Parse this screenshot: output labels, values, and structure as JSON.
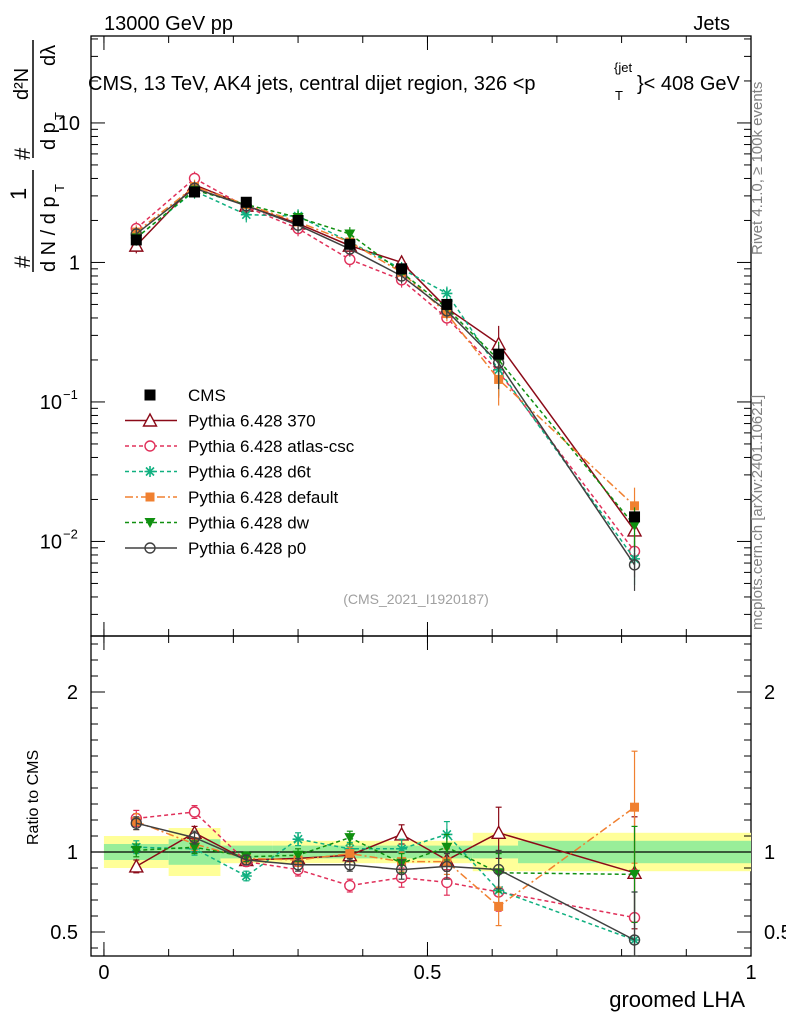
{
  "header": {
    "energy": "13000 GeV pp",
    "category": "Jets",
    "title": "CMS, 13 TeV, AK4 jets, central dijet region, 326 <p",
    "title_sup": "{jet",
    "title_sub": "T",
    "title_end": "}< 408 GeV"
  },
  "side_labels": {
    "rivet": "Rivet 4.1.0, ≥ 100k events",
    "mcplots": "mcplots.cern.ch [arXiv:2401.10621]"
  },
  "watermark": "(CMS_2021_I1920187)",
  "ylabel_main": "1/N dN/dpT d^2N/dpT dλ",
  "ylabel_ratio": "Ratio to CMS",
  "xlabel": "groomed LHA",
  "chart_data": {
    "type": "line",
    "x": [
      0.05,
      0.14,
      0.22,
      0.3,
      0.38,
      0.46,
      0.53,
      0.61,
      0.82
    ],
    "x_ticks": [
      "0",
      "0.5",
      "1"
    ],
    "xlim": [
      -0.02,
      1.0
    ],
    "main": {
      "yscale": "log",
      "ylim": [
        0.0021,
        42
      ],
      "y_ticks": [
        {
          "value": 0.01,
          "label": "10",
          "sup": "−2"
        },
        {
          "value": 0.1,
          "label": "10",
          "sup": "−1"
        },
        {
          "value": 1,
          "label": "1",
          "sup": ""
        },
        {
          "value": 10,
          "label": "10",
          "sup": ""
        }
      ]
    },
    "ratio": {
      "yscale": "linear",
      "ylim": [
        0.35,
        2.35
      ],
      "y_ticks": [
        "0.5",
        "1",
        "2"
      ],
      "band_edges": [
        0.0,
        0.1,
        0.18,
        0.26,
        0.34,
        0.42,
        0.5,
        0.57,
        0.64,
        1.0
      ],
      "band_inner": [
        [
          0.95,
          1.05
        ],
        [
          0.92,
          1.08
        ],
        [
          0.96,
          1.04
        ],
        [
          0.96,
          1.04
        ],
        [
          0.96,
          1.04
        ],
        [
          0.96,
          1.04
        ],
        [
          0.96,
          1.04
        ],
        [
          0.96,
          1.04
        ],
        [
          0.93,
          1.07
        ]
      ],
      "band_outer": [
        [
          0.9,
          1.1
        ],
        [
          0.85,
          1.15
        ],
        [
          0.93,
          1.07
        ],
        [
          0.93,
          1.07
        ],
        [
          0.93,
          1.07
        ],
        [
          0.93,
          1.07
        ],
        [
          0.93,
          1.07
        ],
        [
          0.88,
          1.12
        ],
        [
          0.88,
          1.12
        ]
      ]
    },
    "data": {
      "name": "CMS",
      "values": [
        1.45,
        3.2,
        2.7,
        2.0,
        1.35,
        0.9,
        0.5,
        0.22,
        0.015
      ]
    },
    "series": [
      {
        "name": "Pythia 6.428 370",
        "color": "#8b0a18",
        "marker": "triangle-open",
        "dash": "solid",
        "values": [
          1.32,
          3.6,
          2.55,
          1.9,
          1.32,
          1.0,
          0.47,
          0.26,
          0.012
        ],
        "ratio": [
          0.91,
          1.12,
          0.95,
          0.96,
          0.98,
          1.11,
          0.95,
          1.12,
          0.87
        ],
        "ratio_err": [
          0.04,
          0.04,
          0.03,
          0.04,
          0.04,
          0.06,
          0.07,
          0.16,
          0.35
        ]
      },
      {
        "name": "Pythia 6.428 atlas-csc",
        "color": "#e0305a",
        "marker": "circle-open",
        "dash": "4,3",
        "values": [
          1.75,
          4.0,
          2.5,
          1.75,
          1.05,
          0.75,
          0.4,
          0.165,
          0.0085
        ],
        "ratio": [
          1.21,
          1.25,
          0.94,
          0.89,
          0.79,
          0.84,
          0.81,
          0.75,
          0.59
        ],
        "ratio_err": [
          0.05,
          0.04,
          0.03,
          0.04,
          0.04,
          0.06,
          0.08,
          0.12,
          0.3
        ]
      },
      {
        "name": "Pythia 6.428 d6t",
        "color": "#10b080",
        "marker": "star",
        "dash": "4,3",
        "values": [
          1.5,
          3.25,
          2.2,
          2.15,
          1.4,
          0.9,
          0.6,
          0.17,
          0.0075
        ],
        "ratio": [
          1.03,
          1.02,
          0.85,
          1.08,
          1.02,
          1.02,
          1.11,
          0.76,
          0.45
        ],
        "ratio_err": [
          0.04,
          0.04,
          0.03,
          0.04,
          0.04,
          0.06,
          0.08,
          0.12,
          0.3
        ]
      },
      {
        "name": "Pythia 6.428 default",
        "color": "#f08030",
        "marker": "square",
        "dash": "8,3,2,3",
        "values": [
          1.65,
          3.5,
          2.6,
          1.95,
          1.4,
          0.85,
          0.43,
          0.145,
          0.018
        ],
        "ratio": [
          1.19,
          1.05,
          0.96,
          0.95,
          0.99,
          0.94,
          0.94,
          0.66,
          1.28
        ],
        "ratio_err": [
          0.05,
          0.04,
          0.03,
          0.04,
          0.04,
          0.06,
          0.08,
          0.12,
          0.35
        ]
      },
      {
        "name": "Pythia 6.428 dw",
        "color": "#109010",
        "marker": "triangle-down",
        "dash": "4,3",
        "values": [
          1.5,
          3.3,
          2.6,
          2.1,
          1.6,
          0.85,
          0.47,
          0.2,
          0.013
        ],
        "ratio": [
          1.01,
          1.03,
          0.97,
          0.98,
          1.09,
          0.93,
          1.03,
          0.87,
          0.86
        ],
        "ratio_err": [
          0.04,
          0.04,
          0.03,
          0.04,
          0.04,
          0.06,
          0.08,
          0.12,
          0.3
        ]
      },
      {
        "name": "Pythia 6.428 p0",
        "color": "#404040",
        "marker": "circle-open-dot",
        "dash": "solid",
        "values": [
          1.6,
          3.4,
          2.55,
          1.85,
          1.25,
          0.8,
          0.45,
          0.19,
          0.0068
        ],
        "ratio": [
          1.18,
          1.09,
          0.95,
          0.92,
          0.92,
          0.89,
          0.91,
          0.89,
          0.45
        ],
        "ratio_err": [
          0.04,
          0.04,
          0.03,
          0.04,
          0.04,
          0.06,
          0.08,
          0.12,
          0.3
        ]
      }
    ]
  }
}
